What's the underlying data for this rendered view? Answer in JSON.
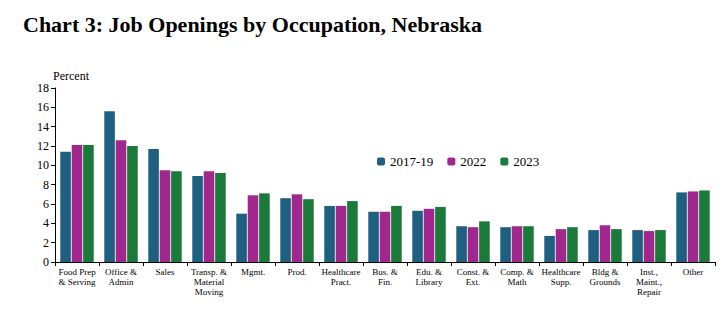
{
  "chart_data": {
    "type": "bar",
    "title": "Chart 3: Job Openings by Occupation, Nebraska",
    "y_label": "Percent",
    "categories": [
      "Food Prep\n& Serving",
      "Office &\nAdmin",
      "Sales",
      "Transp. &\nMaterial\nMoving",
      "Mgmt.",
      "Prod.",
      "Healthcare\nPract.",
      "Bus. &\nFin.",
      "Edu. &\nLibrary",
      "Const. &\nExt.",
      "Comp. &\nMath",
      "Healthcare\nSupp.",
      "Bldg &\nGrounds",
      "Inst.,\nMaint.,\nRepair",
      "Other"
    ],
    "series": [
      {
        "name": "2017-19",
        "color": "#1f5f7f",
        "values": [
          11.4,
          15.6,
          11.7,
          8.9,
          5.0,
          6.6,
          5.8,
          5.2,
          5.3,
          3.7,
          3.6,
          2.7,
          3.3,
          3.3,
          7.2
        ]
      },
      {
        "name": "2022",
        "color": "#a0288c",
        "values": [
          12.1,
          12.6,
          9.5,
          9.4,
          6.9,
          7.0,
          5.8,
          5.2,
          5.5,
          3.6,
          3.7,
          3.4,
          3.8,
          3.2,
          7.3
        ]
      },
      {
        "name": "2023",
        "color": "#1a7a3a",
        "values": [
          12.1,
          12.0,
          9.4,
          9.2,
          7.1,
          6.5,
          6.3,
          5.8,
          5.7,
          4.2,
          3.7,
          3.6,
          3.4,
          3.3,
          7.4
        ]
      }
    ],
    "ylim": [
      0,
      18
    ],
    "yticks": [
      0,
      2,
      4,
      6,
      8,
      10,
      12,
      14,
      16,
      18
    ],
    "grid": false,
    "legend": "center"
  }
}
